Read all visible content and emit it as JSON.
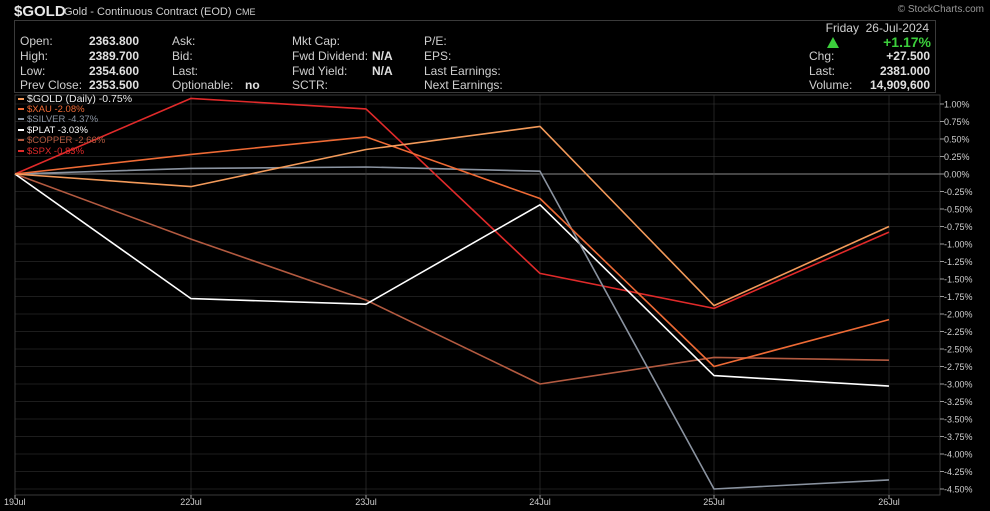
{
  "header": {
    "symbol": "$GOLD",
    "description": "Gold - Continuous Contract (EOD)",
    "exchange": "CME",
    "credit": "© StockCharts.com",
    "day": "Friday",
    "date": "26-Jul-2024",
    "change_pct": "+1.17%",
    "trend_icon": "up-triangle-icon"
  },
  "stats": {
    "open_label": "Open:",
    "open": "2363.800",
    "high_label": "High:",
    "high": "2389.700",
    "low_label": "Low:",
    "low": "2354.600",
    "prev_close_label": "Prev Close:",
    "prev_close": "2353.500",
    "ask_label": "Ask:",
    "ask": "",
    "bid_label": "Bid:",
    "bid": "",
    "last_label": "Last:",
    "last": "",
    "optionable_label": "Optionable:",
    "optionable": "no",
    "mkt_cap_label": "Mkt Cap:",
    "mkt_cap": "",
    "fwd_dividend_label": "Fwd Dividend:",
    "fwd_dividend": "N/A",
    "fwd_yield_label": "Fwd Yield:",
    "fwd_yield": "N/A",
    "sctr_label": "SCTR:",
    "sctr": "",
    "pe_label": "P/E:",
    "pe": "",
    "eps_label": "EPS:",
    "eps": "",
    "last_earnings_label": "Last Earnings:",
    "last_earnings": "",
    "next_earnings_label": "Next Earnings:",
    "next_earnings": "",
    "chg_label": "Chg:",
    "chg": "+27.500",
    "last2_label": "Last:",
    "last2": "2381.000",
    "volume_label": "Volume:",
    "volume": "14,909,600"
  },
  "colors": {
    "background": "#000000",
    "grid": "#3a3a3a",
    "zero_line": "#8a8a8a",
    "up": "#3ccf3c"
  },
  "chart_data": {
    "type": "line",
    "x": [
      "19Jul",
      "22Jul",
      "23Jul",
      "24Jul",
      "25Jul",
      "26Jul"
    ],
    "ylim": [
      -4.6,
      1.1
    ],
    "yticks": [
      "1.00%",
      "0.75%",
      "0.50%",
      "0.25%",
      "0.00%",
      "-0.25%",
      "-0.50%",
      "-0.75%",
      "-1.00%",
      "-1.25%",
      "-1.50%",
      "-1.75%",
      "-2.00%",
      "-2.25%",
      "-2.50%",
      "-2.75%",
      "-3.00%",
      "-3.25%",
      "-3.50%",
      "-3.75%",
      "-4.00%",
      "-4.25%",
      "-4.50%"
    ],
    "ytick_values": [
      1,
      0.75,
      0.5,
      0.25,
      0,
      -0.25,
      -0.5,
      -0.75,
      -1,
      -1.25,
      -1.5,
      -1.75,
      -2,
      -2.25,
      -2.5,
      -2.75,
      -3,
      -3.25,
      -3.5,
      -3.75,
      -4,
      -4.25,
      -4.5
    ],
    "grid": true,
    "legend": "top-left",
    "series": [
      {
        "name": "$GOLD (Daily) -0.75%",
        "color": "#f39a5a",
        "values": [
          0,
          -0.18,
          0.35,
          0.68,
          -1.88,
          -0.75
        ]
      },
      {
        "name": "$XAU -2.08%",
        "color": "#ee6a35",
        "values": [
          0,
          0.28,
          0.53,
          -0.35,
          -2.75,
          -2.08
        ]
      },
      {
        "name": "$SILVER -4.37%",
        "color": "#8a93a0",
        "values": [
          0,
          0.08,
          0.1,
          0.04,
          -4.5,
          -4.37
        ]
      },
      {
        "name": "$PLAT -3.03%",
        "color": "#ffffff",
        "values": [
          0,
          -1.78,
          -1.86,
          -0.44,
          -2.88,
          -3.03
        ]
      },
      {
        "name": "$COPPER -2.66%",
        "color": "#b35a40",
        "values": [
          0,
          -0.93,
          -1.8,
          -3.0,
          -2.62,
          -2.66
        ]
      },
      {
        "name": "$SPX -0.83%",
        "color": "#e02a2a",
        "values": [
          0,
          1.08,
          0.93,
          -1.42,
          -1.92,
          -0.83
        ]
      }
    ]
  }
}
